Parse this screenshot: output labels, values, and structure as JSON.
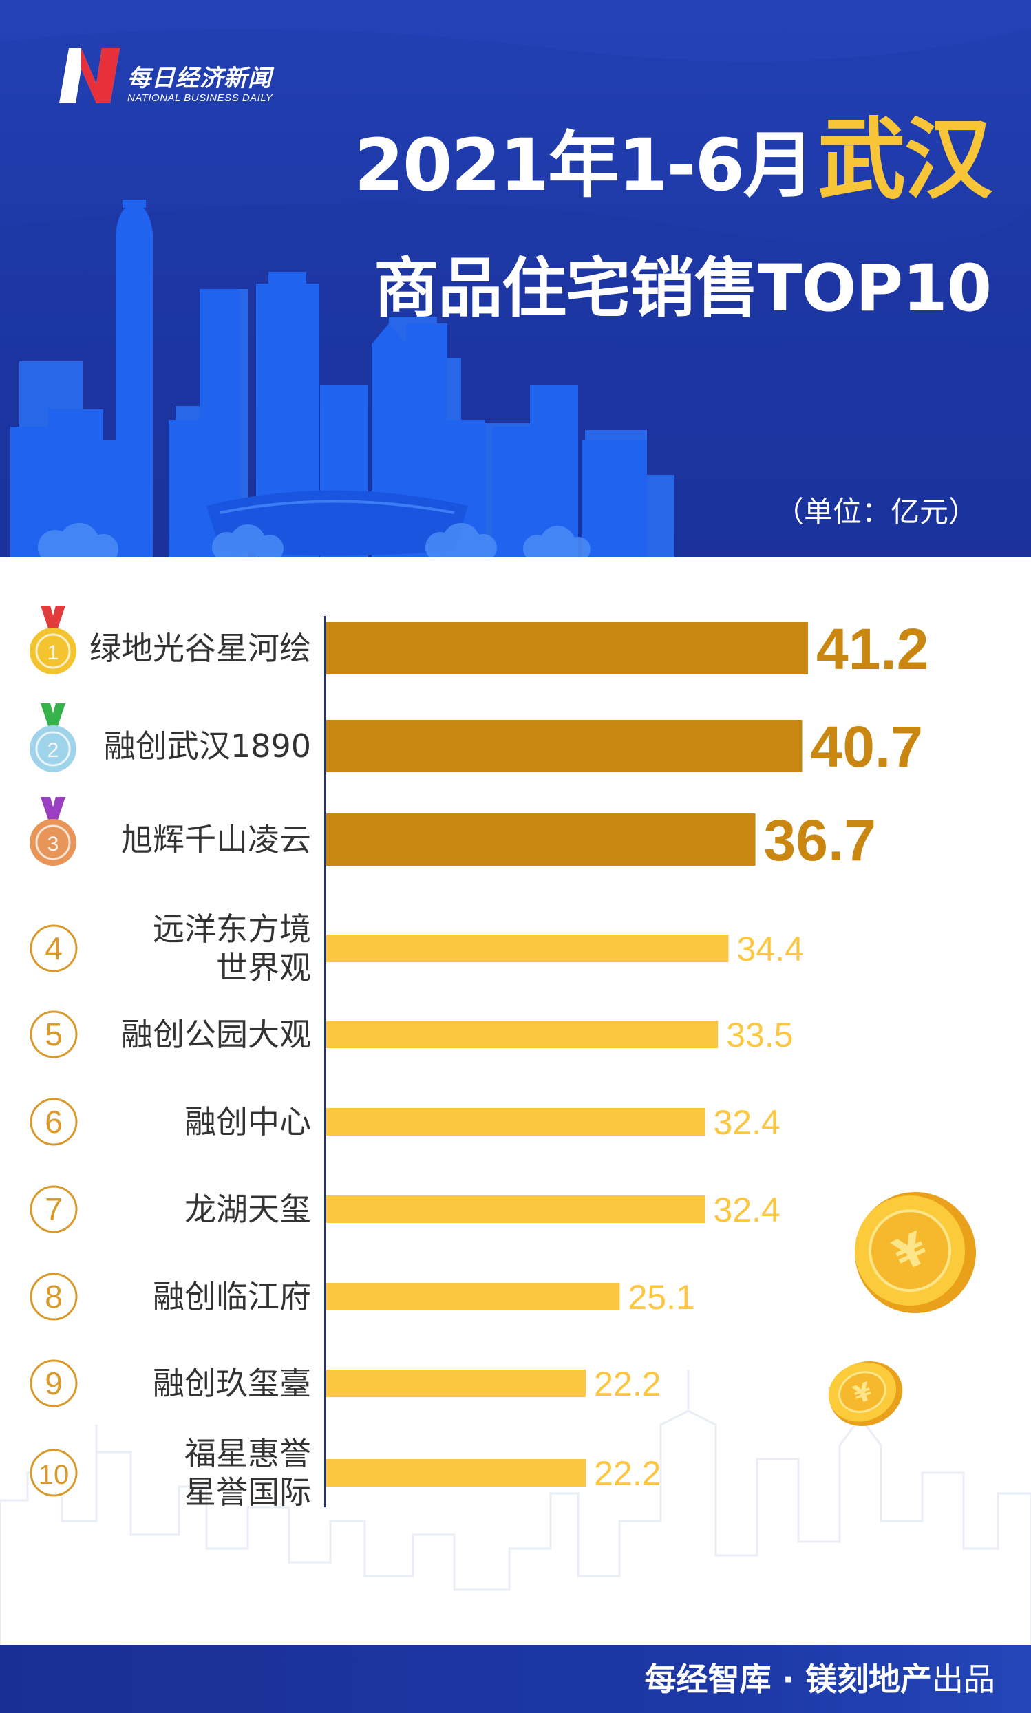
{
  "brand": {
    "name_cn": "每日经济新闻",
    "name_en": "NATIONAL BUSINESS DAILY",
    "red": "#e8303a",
    "white": "#ffffff"
  },
  "header": {
    "title_line1_prefix": "2021年1-6月",
    "title_line1_highlight": "武汉",
    "title_line2": "商品住宅销售TOP10",
    "unit": "（单位：亿元）",
    "bg_color": "#1b34a0",
    "highlight_color": "#f7c537"
  },
  "footer": {
    "bold_text": "每经智库 · 镁刻地产",
    "normal_text": "出品"
  },
  "chart_data": {
    "type": "bar",
    "orientation": "horizontal",
    "unit": "亿元",
    "xlim": [
      0,
      41.2
    ],
    "categories": [
      {
        "rank": "1",
        "lines": [
          "绿地光谷星河绘"
        ]
      },
      {
        "rank": "2",
        "lines": [
          "融创武汉1890"
        ]
      },
      {
        "rank": "3",
        "lines": [
          "旭辉千山凌云"
        ]
      },
      {
        "rank": "4",
        "lines": [
          "远洋东方境",
          "世界观"
        ]
      },
      {
        "rank": "5",
        "lines": [
          "融创公园大观"
        ]
      },
      {
        "rank": "6",
        "lines": [
          "融创中心"
        ]
      },
      {
        "rank": "7",
        "lines": [
          "龙湖天玺"
        ]
      },
      {
        "rank": "8",
        "lines": [
          "融创临江府"
        ]
      },
      {
        "rank": "9",
        "lines": [
          "融创玖玺臺"
        ]
      },
      {
        "rank": "10",
        "lines": [
          "福星惠誉",
          "星誉国际"
        ]
      }
    ],
    "values": [
      41.2,
      40.7,
      36.7,
      34.4,
      33.5,
      32.4,
      32.4,
      25.1,
      22.2,
      22.2
    ],
    "value_labels": [
      "41.2",
      "40.7",
      "36.7",
      "34.4",
      "33.5",
      "32.4",
      "32.4",
      "25.1",
      "22.2",
      "22.2"
    ],
    "top3_color": "#c98711",
    "rest_color": "#fcc640",
    "label_color": "#333333",
    "rank_circle_color": "#d99a2b",
    "medal_ribbon_colors": [
      "#e23b3b",
      "#35b34a",
      "#9b3fc2"
    ],
    "medal_colors": [
      "#f4c430",
      "#9fd3ea",
      "#e8955a"
    ]
  }
}
